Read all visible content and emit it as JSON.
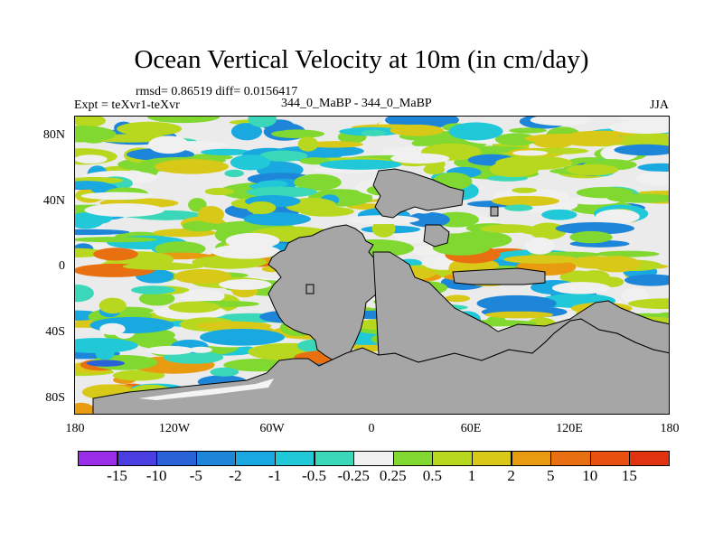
{
  "title": "Ocean Vertical Velocity at 10m (in cm/day)",
  "stats": "rmsd= 0.86519 diff= 0.0156417",
  "experiment": "Expt = teXvr1-teXvr",
  "case": "344_0_MaBP - 344_0_MaBP",
  "season": "JJA",
  "y_ticks": [
    "80N",
    "40N",
    "0",
    "40S",
    "80S"
  ],
  "x_ticks": [
    "180",
    "120W",
    "60W",
    "0",
    "60E",
    "120E",
    "180"
  ],
  "colorbar": {
    "labels": [
      "-15",
      "-10",
      "-5",
      "-2",
      "-1",
      "-0.5",
      "-0.25",
      "0.25",
      "0.5",
      "1",
      "2",
      "5",
      "10",
      "15"
    ],
    "colors": [
      "#9a2ee8",
      "#4a3ee0",
      "#2a62d8",
      "#1e86d8",
      "#1aa8e0",
      "#20c8d8",
      "#3ad8b8",
      "#f0f0f0",
      "#80d830",
      "#b8d820",
      "#d8c818",
      "#e89a10",
      "#e87010",
      "#e85010",
      "#e03410"
    ]
  },
  "land_color": "#a6a6a6",
  "ocean_neutral_color": "#ebebeb"
}
